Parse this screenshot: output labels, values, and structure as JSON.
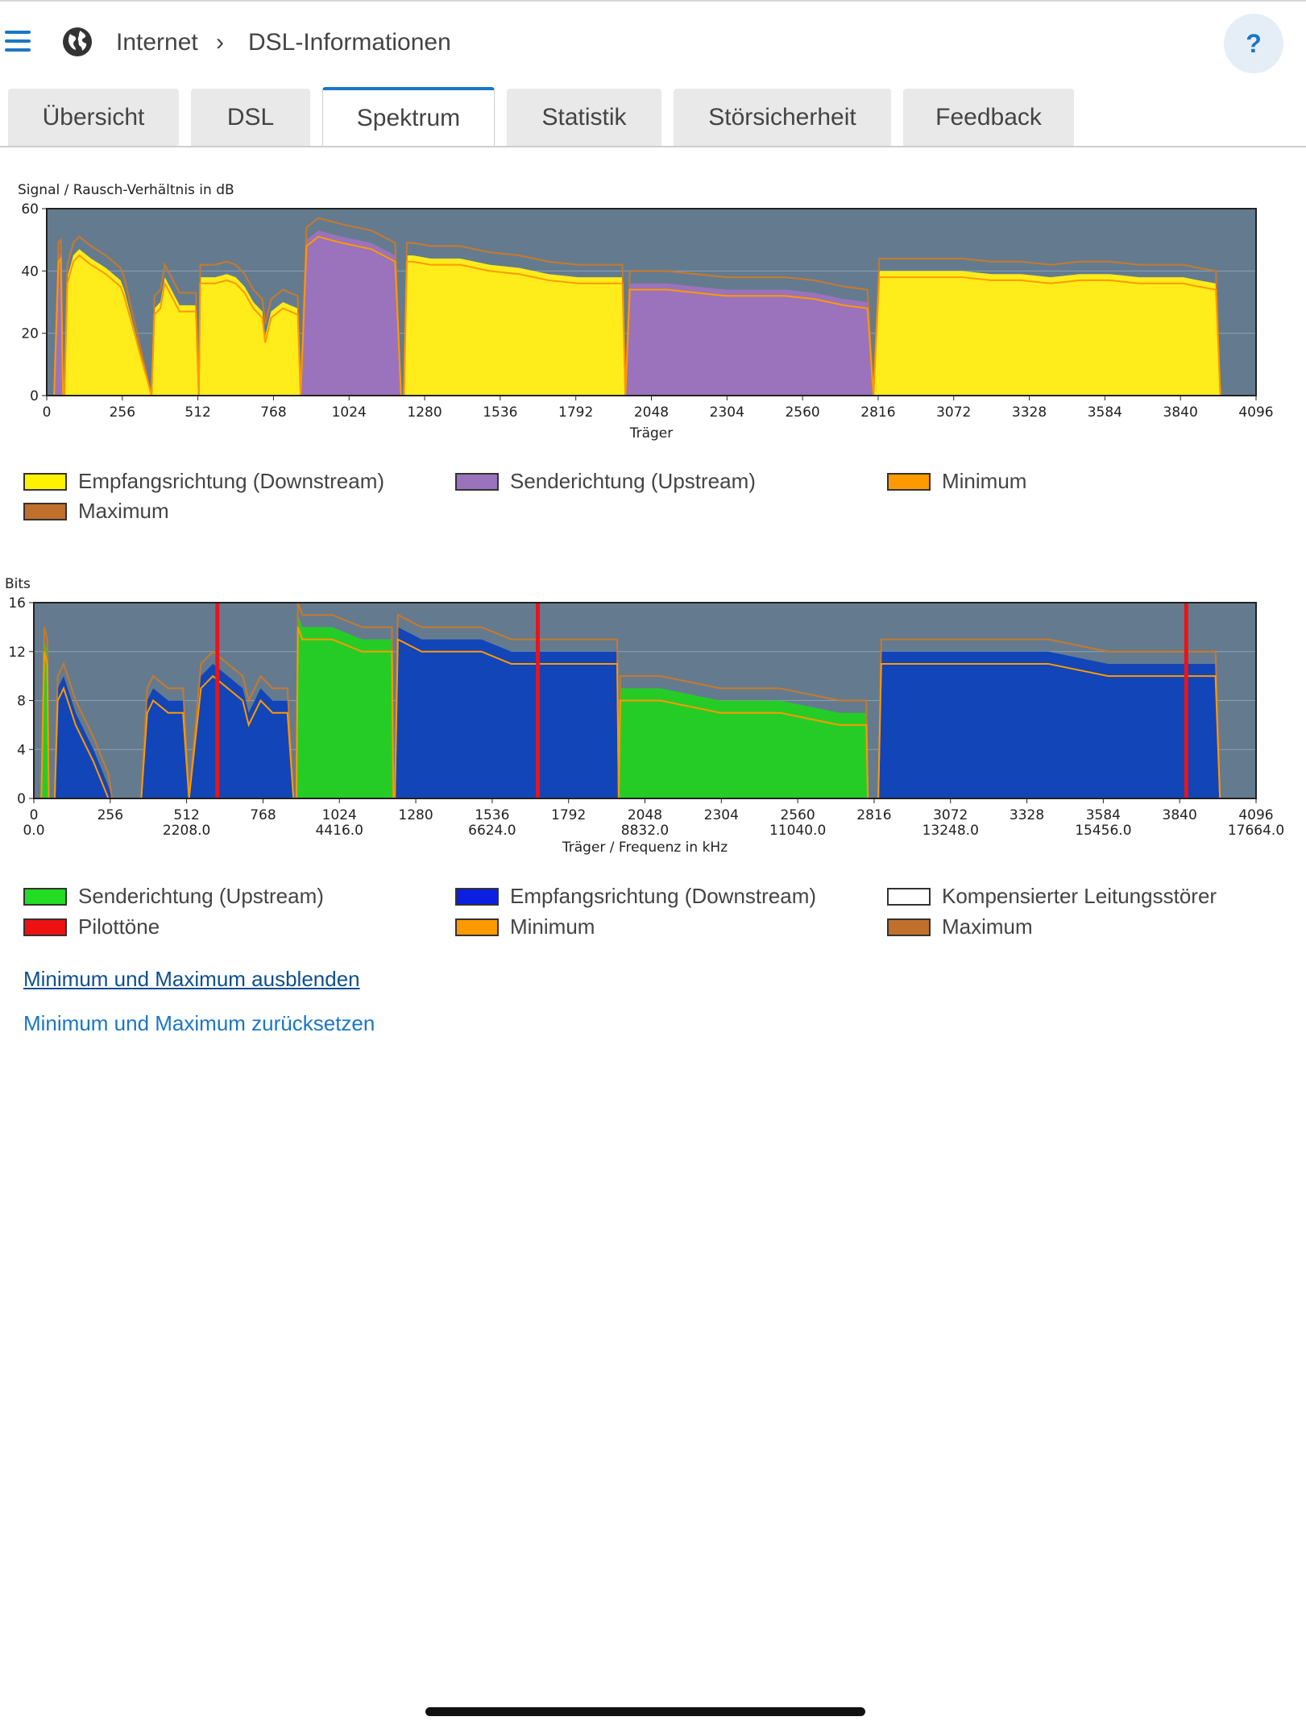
{
  "header": {
    "breadcrumb_1": "Internet",
    "breadcrumb_separator": "›",
    "breadcrumb_2": "DSL-Informationen",
    "help_label": "?"
  },
  "tabs": [
    {
      "label": "Übersicht",
      "active": false
    },
    {
      "label": "DSL",
      "active": false
    },
    {
      "label": "Spektrum",
      "active": true
    },
    {
      "label": "Statistik",
      "active": false
    },
    {
      "label": "Störsicherheit",
      "active": false
    },
    {
      "label": "Feedback",
      "active": false
    }
  ],
  "colors": {
    "accent": "#1a76c6",
    "plot_bg": "#647b8f",
    "downstream_snr": "#ffec1a",
    "upstream_snr": "#9b72bc",
    "minimum": "#ff9900",
    "maximum": "#c87a2a",
    "upstream_bits": "#26cc26",
    "downstream_bits": "#1245b8",
    "pilot": "#e8141c"
  },
  "legend_snr": [
    {
      "label": "Empfangsrichtung (Downstream)",
      "color": "#fff200"
    },
    {
      "label": "Senderichtung (Upstream)",
      "color": "#9b72bc"
    },
    {
      "label": "Minimum",
      "color": "#ff9900"
    },
    {
      "label": "Maximum",
      "color": "#c0702a"
    }
  ],
  "legend_bits": [
    {
      "label": "Senderichtung (Upstream)",
      "color": "#22dd22"
    },
    {
      "label": "Empfangsrichtung (Downstream)",
      "color": "#0a1fe0"
    },
    {
      "label": "Kompensierter Leitungsstörer",
      "color": "#ffffff"
    },
    {
      "label": "Pilottöne",
      "color": "#ee1111"
    },
    {
      "label": "Minimum",
      "color": "#ff9900"
    },
    {
      "label": "Maximum",
      "color": "#c0702a"
    }
  ],
  "links": {
    "hide_minmax": "Minimum und Maximum ausblenden",
    "reset_minmax": "Minimum und Maximum zurücksetzen"
  },
  "chart_data": [
    {
      "type": "area",
      "title": "Signal / Rausch-Verhältnis in dB",
      "xlabel": "Träger",
      "ylabel": "",
      "xlim": [
        0,
        4096
      ],
      "ylim": [
        0,
        60
      ],
      "xticks": [
        "0",
        "256",
        "512",
        "768",
        "1024",
        "1280",
        "1536",
        "1792",
        "2048",
        "2304",
        "2560",
        "2816",
        "3072",
        "3328",
        "3584",
        "3840",
        "4096"
      ],
      "yticks": [
        "0",
        "20",
        "40",
        "60"
      ],
      "series": [
        {
          "name": "Empfangsrichtung (Downstream)",
          "role": "downstream",
          "x": [
            60,
            70,
            90,
            110,
            150,
            200,
            250,
            262,
            355,
            365,
            385,
            400,
            450,
            505,
            515,
            520,
            570,
            610,
            640,
            670,
            700,
            730,
            740,
            760,
            800,
            850,
            860,
            1210,
            1220,
            1240,
            1300,
            1400,
            1500,
            1600,
            1700,
            1800,
            1820,
            1950,
            1960,
            2800,
            2820,
            2900,
            3000,
            3100,
            3200,
            3300,
            3400,
            3500,
            3600,
            3700,
            3800,
            3850,
            3900,
            3960,
            3975
          ],
          "y": [
            0,
            38,
            45,
            47,
            44,
            41,
            37,
            34,
            0,
            28,
            30,
            38,
            29,
            29,
            0,
            38,
            38,
            39,
            38,
            35,
            30,
            27,
            19,
            27,
            30,
            28,
            0,
            0,
            45,
            45,
            44,
            44,
            42,
            41,
            39,
            38,
            38,
            38,
            0,
            0,
            40,
            40,
            40,
            40,
            39,
            39,
            38,
            39,
            39,
            38,
            38,
            38,
            37,
            36,
            0
          ]
        },
        {
          "name": "Senderichtung (Upstream)",
          "role": "upstream",
          "x": [
            25,
            40,
            48,
            55,
            860,
            880,
            920,
            1000,
            1100,
            1180,
            1200,
            1960,
            1975,
            2100,
            2200,
            2300,
            2400,
            2500,
            2600,
            2700,
            2780,
            2800
          ],
          "y": [
            0,
            45,
            46,
            0,
            0,
            50,
            53,
            51,
            49,
            45,
            0,
            0,
            36,
            36,
            35,
            34,
            34,
            34,
            33,
            31,
            30,
            0
          ]
        },
        {
          "name": "Minimum",
          "role": "min"
        },
        {
          "name": "Maximum",
          "role": "max"
        }
      ]
    },
    {
      "type": "area",
      "title": "Bits",
      "xlabel": "Träger / Frequenz in kHz",
      "ylabel": "",
      "xlim": [
        0,
        4096
      ],
      "ylim": [
        0,
        16
      ],
      "xticks": [
        "0",
        "256",
        "512",
        "768",
        "1024",
        "1280",
        "1536",
        "1792",
        "2048",
        "2304",
        "2560",
        "2816",
        "3072",
        "3328",
        "3584",
        "3840",
        "4096"
      ],
      "xticks_freq": [
        "0.0",
        "2208.0",
        "4416.0",
        "6624.0",
        "8832.0",
        "11040.0",
        "13248.0",
        "15456.0",
        "17664.0"
      ],
      "yticks": [
        "0",
        "4",
        "8",
        "12",
        "16"
      ],
      "series": [
        {
          "name": "Senderichtung (Upstream)",
          "role": "upstream",
          "x": [
            25,
            35,
            45,
            50,
            880,
            885,
            900,
            1000,
            1100,
            1200,
            1205,
            1960,
            1965,
            2100,
            2300,
            2500,
            2700,
            2790,
            2795
          ],
          "y": [
            0,
            13,
            12,
            0,
            0,
            15,
            14,
            14,
            13,
            13,
            0,
            0,
            9,
            9,
            8,
            8,
            7,
            7,
            0
          ]
        },
        {
          "name": "Empfangsrichtung (Downstream)",
          "role": "downstream",
          "x": [
            70,
            80,
            100,
            140,
            200,
            250,
            262,
            360,
            380,
            400,
            450,
            500,
            520,
            560,
            600,
            650,
            700,
            720,
            760,
            800,
            850,
            870,
            1210,
            1220,
            1300,
            1400,
            1500,
            1600,
            1700,
            1800,
            1955,
            1960,
            2830,
            2840,
            3000,
            3200,
            3400,
            3600,
            3800,
            3900,
            3960,
            3975
          ],
          "y": [
            0,
            9,
            10,
            7,
            4,
            1,
            0,
            0,
            8,
            9,
            8,
            8,
            0,
            10,
            11,
            10,
            9,
            7,
            9,
            8,
            8,
            0,
            0,
            14,
            13,
            13,
            13,
            12,
            12,
            12,
            12,
            0,
            0,
            12,
            12,
            12,
            12,
            11,
            11,
            11,
            11,
            0
          ]
        },
        {
          "name": "Pilottöne",
          "role": "pilot",
          "x": [
            615,
            1689,
            3862
          ]
        },
        {
          "name": "Minimum",
          "role": "min"
        },
        {
          "name": "Maximum",
          "role": "max"
        }
      ]
    }
  ]
}
